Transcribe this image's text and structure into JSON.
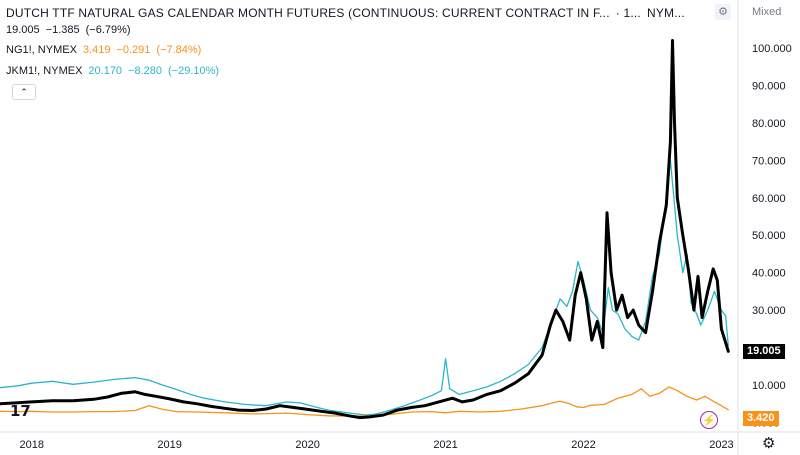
{
  "header": {
    "title": "DUTCH TTF NATURAL GAS CALENDAR MONTH FUTURES (CONTINUOUS: CURRENT CONTRACT IN F...",
    "interval": "· 1...",
    "exchange": "NYM...",
    "scale_mode": "Mixed"
  },
  "legend": {
    "main": {
      "value": "19.005",
      "change": "−1.385",
      "change_pct": "(−6.79%)",
      "color": "#000000"
    },
    "ng": {
      "symbol": "NG1!, NYMEX",
      "value": "3.419",
      "change": "−0.291",
      "change_pct": "(−7.84%)",
      "color": "#f7931a"
    },
    "jkm": {
      "symbol": "JKM1!, NYMEX",
      "value": "20.170",
      "change": "−8.280",
      "change_pct": "(−29.10%)",
      "color": "#2cb5c9"
    }
  },
  "controls": {
    "collapse_glyph": "⌃",
    "settings_glyph": "⚙",
    "bolt_glyph": "⚡",
    "logo_text": "17"
  },
  "badges": {
    "main_last": "19.005",
    "ng_last": "3.420"
  },
  "chart_data": {
    "type": "line",
    "x_ticks": [
      "2018",
      "2019",
      "2020",
      "2021",
      "2022",
      "2023"
    ],
    "y_ticks": [
      "0.000",
      "10.000",
      "20.000",
      "30.000",
      "40.000",
      "50.000",
      "60.000",
      "70.000",
      "80.000",
      "90.000",
      "100.000"
    ],
    "ylim": [
      -2,
      108
    ],
    "xlim": [
      2017.77,
      2023.12
    ],
    "grid": false,
    "series": [
      {
        "name": "JKM1!, NYMEX",
        "color": "#2cb5c9",
        "width": 1.3,
        "points": [
          [
            2017.77,
            9.3
          ],
          [
            2017.9,
            9.8
          ],
          [
            2018.0,
            10.5
          ],
          [
            2018.15,
            11.0
          ],
          [
            2018.3,
            10.2
          ],
          [
            2018.45,
            10.8
          ],
          [
            2018.6,
            11.5
          ],
          [
            2018.75,
            12.0
          ],
          [
            2018.85,
            11.3
          ],
          [
            2018.95,
            10.0
          ],
          [
            2019.05,
            8.8
          ],
          [
            2019.15,
            7.5
          ],
          [
            2019.25,
            6.5
          ],
          [
            2019.4,
            5.5
          ],
          [
            2019.55,
            4.8
          ],
          [
            2019.7,
            4.5
          ],
          [
            2019.85,
            5.5
          ],
          [
            2019.95,
            5.2
          ],
          [
            2020.05,
            4.2
          ],
          [
            2020.15,
            3.3
          ],
          [
            2020.25,
            2.8
          ],
          [
            2020.35,
            2.3
          ],
          [
            2020.42,
            2.0
          ],
          [
            2020.5,
            2.3
          ],
          [
            2020.6,
            3.3
          ],
          [
            2020.7,
            4.5
          ],
          [
            2020.8,
            5.8
          ],
          [
            2020.9,
            7.2
          ],
          [
            2020.97,
            8.5
          ],
          [
            2021.0,
            17.0
          ],
          [
            2021.03,
            9.0
          ],
          [
            2021.1,
            7.5
          ],
          [
            2021.2,
            8.5
          ],
          [
            2021.3,
            9.5
          ],
          [
            2021.4,
            11.0
          ],
          [
            2021.5,
            13.0
          ],
          [
            2021.6,
            15.5
          ],
          [
            2021.7,
            20.0
          ],
          [
            2021.78,
            28.0
          ],
          [
            2021.83,
            33.0
          ],
          [
            2021.88,
            31.0
          ],
          [
            2021.92,
            35.0
          ],
          [
            2021.96,
            43.0
          ],
          [
            2022.0,
            38.0
          ],
          [
            2022.05,
            30.0
          ],
          [
            2022.1,
            28.0
          ],
          [
            2022.14,
            24.0
          ],
          [
            2022.18,
            36.0
          ],
          [
            2022.21,
            30.0
          ],
          [
            2022.25,
            29.0
          ],
          [
            2022.3,
            25.0
          ],
          [
            2022.35,
            23.0
          ],
          [
            2022.4,
            22.0
          ],
          [
            2022.45,
            27.0
          ],
          [
            2022.5,
            39.0
          ],
          [
            2022.55,
            45.0
          ],
          [
            2022.6,
            60.0
          ],
          [
            2022.63,
            70.0
          ],
          [
            2022.65,
            62.0
          ],
          [
            2022.68,
            50.0
          ],
          [
            2022.72,
            40.0
          ],
          [
            2022.75,
            45.0
          ],
          [
            2022.78,
            32.0
          ],
          [
            2022.82,
            29.0
          ],
          [
            2022.85,
            26.0
          ],
          [
            2022.9,
            30.0
          ],
          [
            2022.95,
            35.0
          ],
          [
            2023.0,
            30.0
          ],
          [
            2023.03,
            28.5
          ],
          [
            2023.05,
            20.5
          ]
        ]
      },
      {
        "name": "NG1!, NYMEX",
        "color": "#f7931a",
        "width": 1.3,
        "points": [
          [
            2017.77,
            3.0
          ],
          [
            2017.9,
            2.9
          ],
          [
            2018.0,
            3.0
          ],
          [
            2018.15,
            2.8
          ],
          [
            2018.3,
            2.8
          ],
          [
            2018.45,
            2.9
          ],
          [
            2018.6,
            2.9
          ],
          [
            2018.75,
            3.2
          ],
          [
            2018.85,
            4.5
          ],
          [
            2018.95,
            3.5
          ],
          [
            2019.05,
            2.9
          ],
          [
            2019.2,
            2.8
          ],
          [
            2019.4,
            2.6
          ],
          [
            2019.6,
            2.3
          ],
          [
            2019.75,
            2.4
          ],
          [
            2019.85,
            2.5
          ],
          [
            2020.0,
            2.1
          ],
          [
            2020.15,
            1.8
          ],
          [
            2020.3,
            1.7
          ],
          [
            2020.45,
            1.8
          ],
          [
            2020.6,
            2.2
          ],
          [
            2020.75,
            2.8
          ],
          [
            2020.9,
            2.9
          ],
          [
            2021.0,
            2.6
          ],
          [
            2021.1,
            3.0
          ],
          [
            2021.25,
            2.8
          ],
          [
            2021.4,
            3.0
          ],
          [
            2021.55,
            3.6
          ],
          [
            2021.7,
            4.5
          ],
          [
            2021.78,
            5.3
          ],
          [
            2021.83,
            5.7
          ],
          [
            2021.9,
            5.0
          ],
          [
            2021.95,
            4.2
          ],
          [
            2022.0,
            4.0
          ],
          [
            2022.05,
            4.6
          ],
          [
            2022.15,
            4.8
          ],
          [
            2022.25,
            6.5
          ],
          [
            2022.35,
            7.5
          ],
          [
            2022.42,
            9.0
          ],
          [
            2022.48,
            7.0
          ],
          [
            2022.55,
            7.8
          ],
          [
            2022.62,
            9.5
          ],
          [
            2022.68,
            8.5
          ],
          [
            2022.75,
            7.0
          ],
          [
            2022.82,
            6.0
          ],
          [
            2022.88,
            7.0
          ],
          [
            2022.95,
            5.5
          ],
          [
            2023.0,
            4.5
          ],
          [
            2023.05,
            3.4
          ]
        ]
      },
      {
        "name": "DUTCH TTF",
        "color": "#000000",
        "width": 3.0,
        "points": [
          [
            2017.77,
            5.0
          ],
          [
            2017.9,
            5.3
          ],
          [
            2018.0,
            5.5
          ],
          [
            2018.15,
            5.8
          ],
          [
            2018.3,
            5.8
          ],
          [
            2018.45,
            6.2
          ],
          [
            2018.55,
            6.8
          ],
          [
            2018.65,
            7.8
          ],
          [
            2018.75,
            8.2
          ],
          [
            2018.82,
            7.5
          ],
          [
            2018.9,
            7.0
          ],
          [
            2019.0,
            6.3
          ],
          [
            2019.1,
            5.5
          ],
          [
            2019.2,
            5.0
          ],
          [
            2019.3,
            4.3
          ],
          [
            2019.4,
            3.8
          ],
          [
            2019.5,
            3.3
          ],
          [
            2019.6,
            3.2
          ],
          [
            2019.7,
            3.6
          ],
          [
            2019.8,
            4.5
          ],
          [
            2019.9,
            4.0
          ],
          [
            2020.0,
            3.5
          ],
          [
            2020.1,
            3.0
          ],
          [
            2020.2,
            2.5
          ],
          [
            2020.3,
            1.8
          ],
          [
            2020.38,
            1.3
          ],
          [
            2020.45,
            1.5
          ],
          [
            2020.55,
            2.0
          ],
          [
            2020.65,
            3.3
          ],
          [
            2020.75,
            4.0
          ],
          [
            2020.85,
            4.5
          ],
          [
            2020.95,
            5.5
          ],
          [
            2021.05,
            6.5
          ],
          [
            2021.12,
            5.5
          ],
          [
            2021.2,
            6.0
          ],
          [
            2021.3,
            7.5
          ],
          [
            2021.4,
            8.5
          ],
          [
            2021.5,
            10.5
          ],
          [
            2021.6,
            13.0
          ],
          [
            2021.7,
            18.0
          ],
          [
            2021.76,
            26.0
          ],
          [
            2021.8,
            30.0
          ],
          [
            2021.85,
            27.0
          ],
          [
            2021.9,
            22.0
          ],
          [
            2021.94,
            34.0
          ],
          [
            2021.98,
            40.0
          ],
          [
            2022.02,
            33.0
          ],
          [
            2022.06,
            22.0
          ],
          [
            2022.1,
            27.0
          ],
          [
            2022.14,
            20.0
          ],
          [
            2022.17,
            56.0
          ],
          [
            2022.2,
            40.0
          ],
          [
            2022.24,
            30.0
          ],
          [
            2022.28,
            34.0
          ],
          [
            2022.32,
            28.0
          ],
          [
            2022.36,
            30.0
          ],
          [
            2022.4,
            26.0
          ],
          [
            2022.45,
            24.0
          ],
          [
            2022.5,
            35.0
          ],
          [
            2022.55,
            48.0
          ],
          [
            2022.6,
            58.0
          ],
          [
            2022.63,
            75.0
          ],
          [
            2022.645,
            102.0
          ],
          [
            2022.66,
            80.0
          ],
          [
            2022.68,
            60.0
          ],
          [
            2022.72,
            50.0
          ],
          [
            2022.76,
            41.0
          ],
          [
            2022.8,
            30.0
          ],
          [
            2022.83,
            39.0
          ],
          [
            2022.86,
            28.0
          ],
          [
            2022.9,
            35.0
          ],
          [
            2022.94,
            41.0
          ],
          [
            2022.97,
            38.0
          ],
          [
            2023.0,
            25.0
          ],
          [
            2023.05,
            19.0
          ]
        ]
      }
    ]
  }
}
